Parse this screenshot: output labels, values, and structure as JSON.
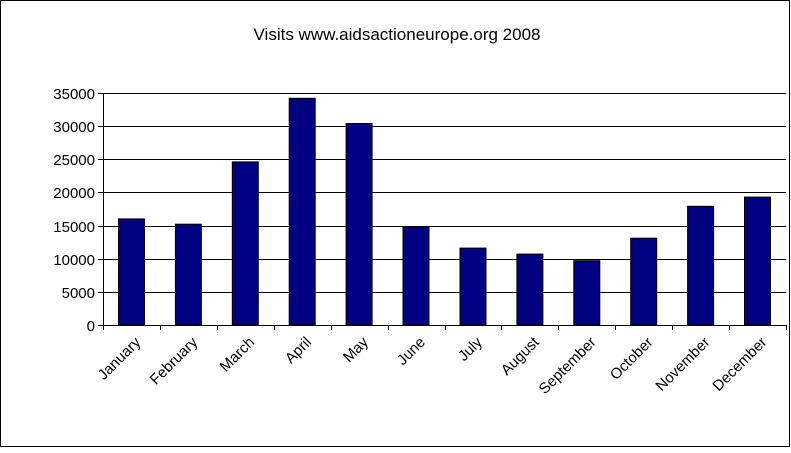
{
  "chart_data": {
    "type": "bar",
    "title": "Visits www.aidsactioneurope.org 2008",
    "xlabel": "",
    "ylabel": "",
    "categories": [
      "January",
      "February",
      "March",
      "April",
      "May",
      "June",
      "July",
      "August",
      "September",
      "October",
      "November",
      "December"
    ],
    "series": [
      {
        "values": [
          16000,
          15200,
          24600,
          34200,
          30400,
          14800,
          11600,
          10700,
          9700,
          13100,
          17900,
          19300
        ]
      }
    ],
    "ylim": [
      0,
      35000
    ],
    "yticks": [
      0,
      5000,
      10000,
      15000,
      20000,
      25000,
      30000,
      35000
    ],
    "ytick_labels": [
      "0",
      "5000",
      "10000",
      "15000",
      "20000",
      "25000",
      "30000",
      "35000"
    ],
    "grid": true,
    "legend": "none",
    "colors": {
      "bar_fill": "#000080",
      "bar_stroke": "#000000",
      "grid": "#000000",
      "border": "#000000",
      "background": "#ffffff"
    }
  }
}
